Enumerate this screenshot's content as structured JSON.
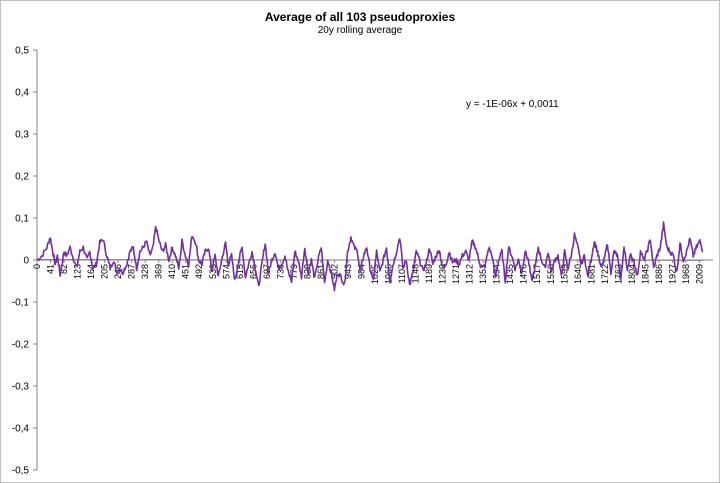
{
  "chart_data": {
    "type": "line",
    "title": "Average of all 103 pseudoproxies",
    "subtitle": "20y rolling average",
    "trendline_label": "y = -1E-06x + 0,0011",
    "ylim": [
      -0.5,
      0.5
    ],
    "y_ticks": [
      "0,5",
      "0,4",
      "0,3",
      "0,2",
      "0,1",
      "0",
      "-0,1",
      "-0,2",
      "-0,3",
      "-0,4",
      "-0,5"
    ],
    "y_tick_values": [
      0.5,
      0.4,
      0.3,
      0.2,
      0.1,
      0,
      -0.1,
      -0.2,
      -0.3,
      -0.4,
      -0.5
    ],
    "x_ticks": [
      "0",
      "41",
      "82",
      "123",
      "164",
      "205",
      "246",
      "287",
      "328",
      "369",
      "410",
      "451",
      "492",
      "533",
      "574",
      "615",
      "656",
      "697",
      "738",
      "779",
      "820",
      "861",
      "902",
      "943",
      "984",
      "1025",
      "1066",
      "1107",
      "1148",
      "1189",
      "1230",
      "1271",
      "1312",
      "1353",
      "1394",
      "1435",
      "1476",
      "1517",
      "1558",
      "1599",
      "1640",
      "1681",
      "1722",
      "1763",
      "1804",
      "1845",
      "1886",
      "1927",
      "1968",
      "2009"
    ],
    "xlim": [
      0,
      2050
    ],
    "grid": false,
    "legend": "none",
    "line_color": "#7030a0",
    "trend_color": "#7f7f7f",
    "trend": {
      "slope": -1e-06,
      "intercept": 0.0011
    },
    "series": [
      {
        "x": [
          0,
          15,
          30,
          40,
          48,
          55,
          62,
          70,
          82,
          90,
          100,
          110,
          120,
          130,
          140,
          152,
          160,
          170,
          180,
          190,
          200,
          212,
          222,
          232,
          242,
          250,
          260,
          272,
          282,
          292,
          302,
          312,
          322,
          332,
          342,
          352,
          360,
          370,
          380,
          390,
          400,
          410,
          420,
          430,
          440,
          450,
          460,
          470,
          482,
          490,
          500,
          510,
          520,
          530,
          540,
          550,
          560,
          572,
          580,
          590,
          600,
          612,
          622,
          632,
          642,
          652,
          662,
          672,
          682,
          692,
          702,
          712,
          722,
          732,
          742,
          752,
          762,
          772,
          782,
          792,
          802,
          812,
          822,
          832,
          842,
          852,
          862,
          872,
          882,
          892,
          902,
          912,
          922,
          932,
          942,
          952,
          962,
          972,
          980,
          990,
          1000,
          1010,
          1020,
          1030,
          1040,
          1050,
          1060,
          1070,
          1080,
          1090,
          1100,
          1110,
          1120,
          1130,
          1140,
          1150,
          1160,
          1170,
          1180,
          1190,
          1200,
          1210,
          1220,
          1230,
          1240,
          1250,
          1260,
          1270,
          1280,
          1290,
          1300,
          1310,
          1320,
          1330,
          1340,
          1350,
          1360,
          1370,
          1380,
          1390,
          1400,
          1410,
          1420,
          1430,
          1440,
          1450,
          1460,
          1470,
          1480,
          1490,
          1500,
          1510,
          1520,
          1530,
          1540,
          1550,
          1560,
          1570,
          1580,
          1590,
          1600,
          1610,
          1620,
          1630,
          1640,
          1650,
          1660,
          1670,
          1680,
          1690,
          1700,
          1710,
          1720,
          1730,
          1740,
          1750,
          1760,
          1770,
          1780,
          1790,
          1800,
          1810,
          1820,
          1830,
          1840,
          1850,
          1860,
          1870,
          1880,
          1890,
          1900,
          1910,
          1920,
          1930,
          1940,
          1950,
          1960,
          1970,
          1980,
          1990,
          2000,
          2010,
          2020
        ],
        "values": [
          0.0,
          0.01,
          0.03,
          0.055,
          0.02,
          -0.01,
          0.01,
          -0.035,
          0.02,
          0.01,
          0.03,
          0.005,
          -0.02,
          0.02,
          0.03,
          0.0,
          0.02,
          -0.02,
          -0.01,
          0.04,
          0.05,
          0.01,
          -0.02,
          0.0,
          -0.03,
          -0.02,
          -0.03,
          -0.01,
          0.02,
          0.03,
          -0.02,
          0.02,
          0.03,
          0.045,
          0.01,
          0.03,
          0.08,
          0.045,
          0.02,
          0.035,
          0.0,
          0.03,
          0.01,
          -0.02,
          0.045,
          0.01,
          -0.01,
          0.06,
          0.04,
          0.0,
          -0.01,
          0.02,
          0.03,
          -0.025,
          0.01,
          -0.04,
          0.0,
          0.04,
          -0.01,
          0.01,
          -0.05,
          0.0,
          0.03,
          -0.04,
          -0.01,
          0.02,
          -0.02,
          -0.065,
          -0.01,
          0.04,
          -0.03,
          0.0,
          0.02,
          -0.02,
          -0.01,
          0.01,
          -0.03,
          -0.05,
          0.02,
          0.0,
          -0.04,
          0.03,
          -0.03,
          0.0,
          -0.045,
          0.0,
          0.03,
          -0.055,
          0.0,
          -0.03,
          -0.07,
          -0.03,
          -0.04,
          -0.06,
          0.02,
          0.055,
          0.03,
          0.02,
          -0.03,
          0.01,
          0.03,
          -0.02,
          -0.05,
          0.02,
          -0.03,
          0.0,
          0.03,
          -0.05,
          -0.01,
          0.02,
          0.055,
          -0.02,
          0.0,
          -0.06,
          -0.03,
          0.02,
          0.0,
          -0.025,
          -0.01,
          0.03,
          -0.01,
          0.01,
          0.025,
          -0.02,
          -0.01,
          0.02,
          -0.005,
          0.0,
          -0.01,
          0.01,
          0.02,
          0.0,
          0.045,
          0.03,
          0.0,
          -0.02,
          -0.01,
          0.03,
          0.01,
          -0.04,
          0.0,
          0.02,
          -0.05,
          0.03,
          0.01,
          -0.02,
          0.0,
          -0.03,
          0.02,
          0.0,
          -0.05,
          -0.02,
          0.03,
          0.0,
          -0.02,
          0.02,
          -0.03,
          0.0,
          0.01,
          -0.04,
          0.02,
          -0.02,
          0.01,
          0.06,
          0.03,
          -0.01,
          0.01,
          -0.04,
          0.0,
          0.045,
          0.02,
          -0.02,
          0.0,
          0.04,
          -0.03,
          0.02,
          0.01,
          -0.05,
          0.03,
          -0.02,
          0.01,
          0.0,
          -0.04,
          0.02,
          0.0,
          0.02,
          0.05,
          -0.02,
          0.01,
          0.03,
          0.085,
          0.03,
          0.02,
          0.01,
          -0.03,
          0.04,
          0.0,
          0.02,
          0.05,
          0.01,
          0.03,
          0.045,
          0.02
        ]
      }
    ]
  }
}
